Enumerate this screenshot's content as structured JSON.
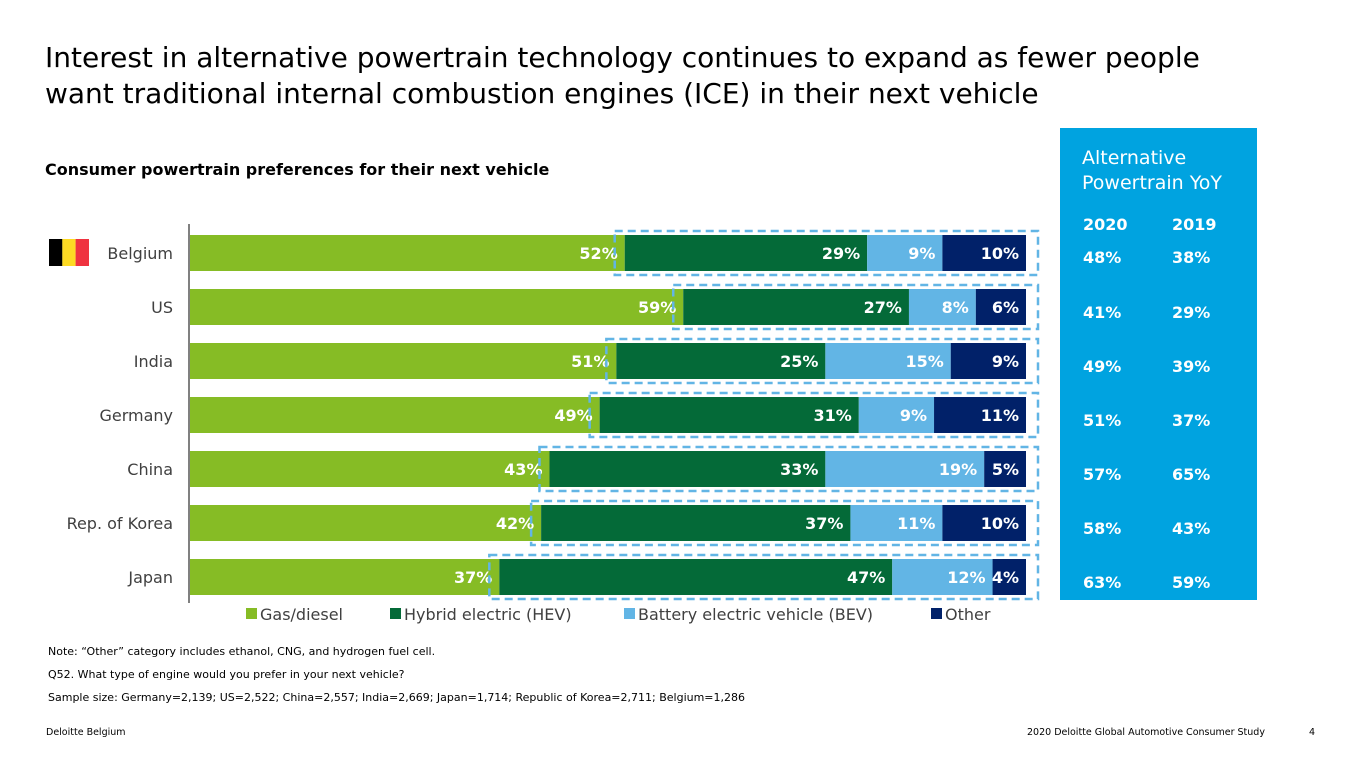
{
  "title_line1": "Interest in alternative powertrain technology continues to expand as fewer people",
  "title_line2": "want traditional internal combustion engines (ICE) in their next vehicle",
  "chart_data": {
    "type": "bar",
    "orientation": "horizontal",
    "stacked": true,
    "title": "Consumer powertrain preferences for their next vehicle",
    "categories": [
      "Belgium",
      "US",
      "India",
      "Germany",
      "China",
      "Rep. of Korea",
      "Japan"
    ],
    "series": [
      {
        "name": "Gas/diesel",
        "color": "#86bc25",
        "values": [
          52,
          59,
          51,
          49,
          43,
          42,
          37
        ]
      },
      {
        "name": "Hybrid electric (HEV)",
        "color": "#046a38",
        "values": [
          29,
          27,
          25,
          31,
          33,
          37,
          47
        ]
      },
      {
        "name": "Battery electric vehicle (BEV)",
        "color": "#62b5e5",
        "values": [
          9,
          8,
          15,
          9,
          19,
          11,
          12
        ]
      },
      {
        "name": "Other",
        "color": "#012169",
        "values": [
          10,
          6,
          9,
          11,
          5,
          10,
          4
        ]
      }
    ],
    "value_suffix": "%",
    "legend_position": "bottom",
    "grid": false,
    "xlim": [
      0,
      100
    ]
  },
  "yoy": {
    "title_line1": "Alternative",
    "title_line2": "Powertrain YoY",
    "col_2020": "2020",
    "col_2019": "2019",
    "values_2020": [
      "48%",
      "41%",
      "49%",
      "51%",
      "57%",
      "58%",
      "63%"
    ],
    "values_2019": [
      "38%",
      "29%",
      "39%",
      "37%",
      "65%",
      "43%",
      "59%"
    ]
  },
  "notes": {
    "note": "Note: “Other” category includes ethanol, CNG, and hydrogen fuel cell.",
    "question": "Q52. What type of engine would you prefer in your next vehicle?",
    "sample": "Sample size: Germany=2,139; US=2,522; China=2,557; India=2,669; Japan=1,714; Republic of Korea=2,711; Belgium=1,286"
  },
  "footer": {
    "left": "Deloitte Belgium",
    "center": "2020 Deloitte Global Automotive Consumer Study",
    "page": "4"
  },
  "colors": {
    "gas": "#86bc25",
    "hybrid": "#046a38",
    "bev": "#62b5e5",
    "other": "#012169",
    "yoy_panel": "#00a3e0",
    "dashed_border": "#62b5e5",
    "flag_black": "#000000",
    "flag_yellow": "#fdda24",
    "flag_red": "#ef3340"
  }
}
